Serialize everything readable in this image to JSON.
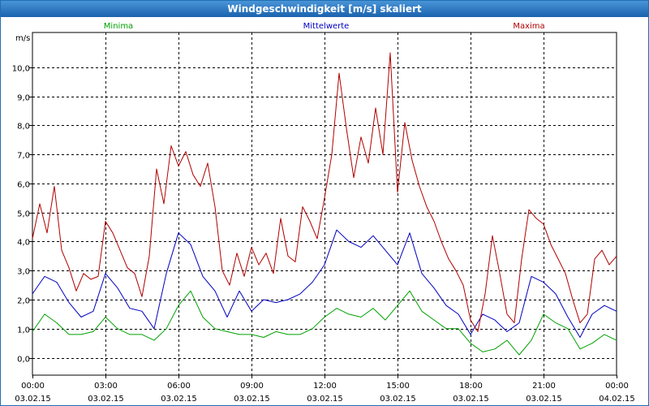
{
  "window": {
    "title": "Windgeschwindigkeit [m/s] skaliert"
  },
  "chart_data": {
    "type": "line",
    "title": "Windgeschwindigkeit [m/s] skaliert",
    "ylabel": "m/s",
    "xlabel": "",
    "ylim": [
      -0.6,
      11.2
    ],
    "xlim": [
      0,
      24
    ],
    "grid": true,
    "yticks": [
      0.0,
      1.0,
      2.0,
      3.0,
      4.0,
      5.0,
      6.0,
      7.0,
      8.0,
      9.0,
      10.0
    ],
    "ytick_labels": [
      "0,0",
      "1,0",
      "2,0",
      "3,0",
      "4,0",
      "5,0",
      "6,0",
      "7,0",
      "8,0",
      "9,0",
      "10,0"
    ],
    "xticks": [
      0,
      3,
      6,
      9,
      12,
      15,
      18,
      21,
      24
    ],
    "xtick_times": [
      "00:00",
      "03:00",
      "06:00",
      "09:00",
      "12:00",
      "15:00",
      "18:00",
      "21:00",
      "00:00"
    ],
    "xtick_dates": [
      "03.02.15",
      "03.02.15",
      "03.02.15",
      "03.02.15",
      "03.02.15",
      "03.02.15",
      "03.02.15",
      "03.02.15",
      "04.02.15"
    ],
    "series": [
      {
        "name": "Minima",
        "color": "#00a000",
        "x": [
          0,
          0.5,
          1,
          1.5,
          2,
          2.5,
          3,
          3.5,
          4,
          4.5,
          5,
          5.5,
          6,
          6.5,
          7,
          7.5,
          8,
          8.5,
          9,
          9.5,
          10,
          10.5,
          11,
          11.5,
          12,
          12.5,
          13,
          13.5,
          14,
          14.5,
          15,
          15.5,
          16,
          16.5,
          17,
          17.5,
          18,
          18.5,
          19,
          19.5,
          20,
          20.5,
          21,
          21.5,
          22,
          22.5,
          23,
          23.5,
          24
        ],
        "values": [
          0.9,
          1.5,
          1.2,
          0.8,
          0.8,
          0.9,
          1.4,
          1.0,
          0.8,
          0.8,
          0.6,
          1.0,
          1.8,
          2.3,
          1.4,
          1.0,
          0.9,
          0.8,
          0.8,
          0.7,
          0.9,
          0.8,
          0.8,
          1.0,
          1.4,
          1.7,
          1.5,
          1.4,
          1.7,
          1.3,
          1.8,
          2.3,
          1.6,
          1.3,
          1.0,
          1.0,
          0.5,
          0.2,
          0.3,
          0.6,
          0.1,
          0.6,
          1.5,
          1.2,
          1.0,
          0.3,
          0.5,
          0.8,
          0.6
        ]
      },
      {
        "name": "Mittelwerte",
        "color": "#0000c0",
        "x": [
          0,
          0.5,
          1,
          1.5,
          2,
          2.5,
          3,
          3.5,
          4,
          4.5,
          5,
          5.5,
          6,
          6.5,
          7,
          7.5,
          8,
          8.5,
          9,
          9.5,
          10,
          10.5,
          11,
          11.5,
          12,
          12.5,
          13,
          13.5,
          14,
          14.5,
          15,
          15.5,
          16,
          16.5,
          17,
          17.5,
          18,
          18.5,
          19,
          19.5,
          20,
          20.5,
          21,
          21.5,
          22,
          22.5,
          23,
          23.5,
          24
        ],
        "values": [
          2.2,
          2.8,
          2.6,
          1.9,
          1.4,
          1.6,
          2.9,
          2.4,
          1.7,
          1.6,
          1.0,
          2.9,
          4.3,
          3.9,
          2.8,
          2.3,
          1.4,
          2.3,
          1.6,
          2.0,
          1.9,
          2.0,
          2.2,
          2.6,
          3.2,
          4.4,
          4.0,
          3.8,
          4.2,
          3.7,
          3.2,
          4.3,
          2.9,
          2.4,
          1.8,
          1.5,
          0.8,
          1.5,
          1.3,
          0.9,
          1.2,
          2.8,
          2.6,
          2.2,
          1.4,
          0.7,
          1.5,
          1.8,
          1.6
        ]
      },
      {
        "name": "Maxima",
        "color": "#b00000",
        "x": [
          0,
          0.3,
          0.6,
          0.9,
          1.2,
          1.5,
          1.8,
          2.1,
          2.4,
          2.7,
          3.0,
          3.3,
          3.6,
          3.9,
          4.2,
          4.5,
          4.8,
          5.1,
          5.4,
          5.7,
          6.0,
          6.3,
          6.6,
          6.9,
          7.2,
          7.5,
          7.8,
          8.1,
          8.4,
          8.7,
          9.0,
          9.3,
          9.6,
          9.9,
          10.2,
          10.5,
          10.8,
          11.1,
          11.4,
          11.7,
          12.0,
          12.3,
          12.6,
          12.9,
          13.2,
          13.5,
          13.8,
          14.1,
          14.4,
          14.7,
          15.0,
          15.3,
          15.6,
          15.9,
          16.2,
          16.5,
          16.8,
          17.1,
          17.4,
          17.7,
          18.0,
          18.3,
          18.6,
          18.9,
          19.2,
          19.5,
          19.8,
          20.1,
          20.4,
          20.7,
          21.0,
          21.3,
          21.6,
          21.9,
          22.2,
          22.5,
          22.8,
          23.1,
          23.4,
          23.7,
          24.0
        ],
        "values": [
          4.1,
          5.3,
          4.3,
          5.9,
          3.7,
          3.1,
          2.3,
          2.9,
          2.7,
          2.8,
          4.7,
          4.3,
          3.7,
          3.1,
          2.9,
          2.1,
          3.5,
          6.5,
          5.3,
          7.3,
          6.6,
          7.1,
          6.3,
          5.9,
          6.7,
          5.2,
          3.0,
          2.5,
          3.6,
          2.8,
          3.8,
          3.2,
          3.6,
          2.9,
          4.8,
          3.5,
          3.3,
          5.2,
          4.7,
          4.1,
          5.5,
          7.0,
          9.8,
          7.9,
          6.2,
          7.6,
          6.7,
          8.6,
          7.0,
          10.5,
          5.7,
          8.1,
          6.8,
          5.9,
          5.2,
          4.7,
          4.0,
          3.4,
          3.0,
          2.5,
          1.3,
          0.9,
          2.2,
          4.2,
          2.9,
          1.5,
          1.2,
          3.4,
          5.1,
          4.8,
          4.6,
          3.9,
          3.4,
          2.9,
          2.0,
          1.2,
          1.5,
          3.4,
          3.7,
          3.2,
          3.5
        ]
      }
    ]
  }
}
